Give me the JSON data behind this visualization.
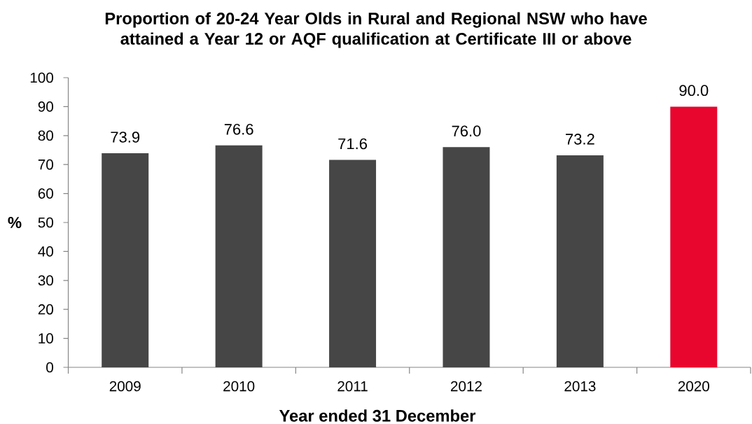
{
  "chart_data": {
    "type": "bar",
    "title": "Proportion of 20-24 Year Olds in Rural and Regional NSW who have attained a Year 12 or AQF qualification at Certificate III or above",
    "xlabel": "Year ended 31 December",
    "ylabel": "%",
    "categories": [
      "2009",
      "2010",
      "2011",
      "2012",
      "2013",
      "2020"
    ],
    "values": [
      73.9,
      76.6,
      71.6,
      76.0,
      73.2,
      90.0
    ],
    "value_labels": [
      "73.9",
      "76.6",
      "71.6",
      "76.0",
      "73.2",
      "90.0"
    ],
    "colors": [
      "#464646",
      "#464646",
      "#464646",
      "#464646",
      "#464646",
      "#e8062f"
    ],
    "ylim": [
      0,
      100
    ],
    "yticks": [
      0,
      10,
      20,
      30,
      40,
      50,
      60,
      70,
      80,
      90,
      100
    ]
  }
}
